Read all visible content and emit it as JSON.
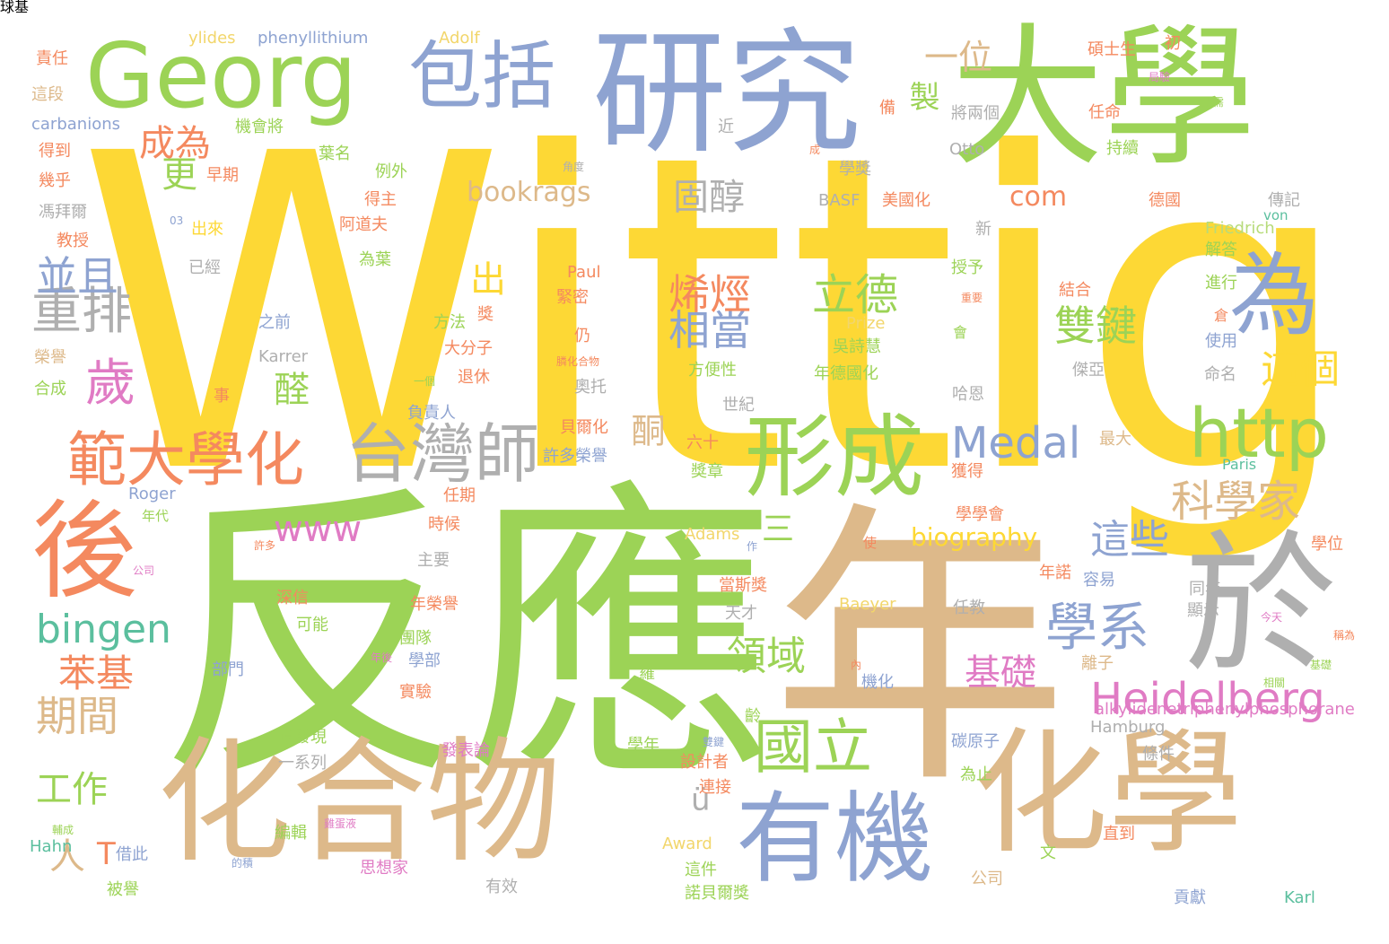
{
  "palette": {
    "yellow": "#FDD835",
    "green": "#9CD356",
    "tan": "#DDB98A",
    "blue": "#8EA3D1",
    "gray": "#AFAFAF",
    "orange": "#F4895F",
    "pink": "#E07BC4",
    "teal": "#5BBF9E",
    "lightgreen": "#B7DB7A",
    "lightyellow": "#F2D66B"
  },
  "words": [
    {
      "text": "Wittig",
      "color": "yellow"
    },
    {
      "text": "反應",
      "color": "green"
    },
    {
      "text": "年",
      "color": "tan"
    },
    {
      "text": "大學",
      "color": "green"
    },
    {
      "text": "研究",
      "color": "blue"
    },
    {
      "text": "化合物",
      "color": "tan"
    },
    {
      "text": "化學",
      "color": "tan"
    },
    {
      "text": "有機",
      "color": "blue"
    },
    {
      "text": "於",
      "color": "gray"
    },
    {
      "text": "Georg",
      "color": "green"
    },
    {
      "text": "包括",
      "color": "blue"
    },
    {
      "text": "為",
      "color": "blue"
    },
    {
      "text": "形成",
      "color": "green"
    },
    {
      "text": "後",
      "color": "orange"
    },
    {
      "text": "http",
      "color": "green"
    },
    {
      "text": "台灣師",
      "color": "gray"
    },
    {
      "text": "範大學化",
      "color": "orange"
    },
    {
      "text": "國立",
      "color": "green"
    },
    {
      "text": "Heidelberg",
      "color": "pink"
    },
    {
      "text": "學系",
      "color": "blue"
    },
    {
      "text": "Medal",
      "color": "blue"
    },
    {
      "text": "科學家",
      "color": "tan"
    },
    {
      "text": "bingen",
      "color": "teal"
    },
    {
      "text": "歲",
      "color": "pink"
    },
    {
      "text": "重排",
      "color": "gray"
    },
    {
      "text": "並且",
      "color": "blue"
    },
    {
      "text": "期間",
      "color": "tan"
    },
    {
      "text": "立德",
      "color": "green"
    },
    {
      "text": "相當",
      "color": "blue"
    },
    {
      "text": "烯烴",
      "color": "orange"
    },
    {
      "text": "雙鍵",
      "color": "green"
    },
    {
      "text": "這個",
      "color": "yellow"
    },
    {
      "text": "這些",
      "color": "blue"
    },
    {
      "text": "領域",
      "color": "green"
    },
    {
      "text": "基礎",
      "color": "pink"
    },
    {
      "text": "苯基",
      "color": "orange"
    },
    {
      "text": "工作",
      "color": "green"
    },
    {
      "text": "成為",
      "color": "orange"
    },
    {
      "text": "更",
      "color": "green"
    },
    {
      "text": "固醇",
      "color": "gray"
    },
    {
      "text": "一位",
      "color": "tan"
    },
    {
      "text": "製",
      "color": "green"
    },
    {
      "text": "酮",
      "color": "tan"
    },
    {
      "text": "醛",
      "color": "green"
    },
    {
      "text": "出",
      "color": "yellow"
    },
    {
      "text": "三",
      "color": "green"
    },
    {
      "text": "www",
      "color": "pink"
    },
    {
      "text": "bookrags",
      "color": "tan"
    },
    {
      "text": "com",
      "color": "orange"
    },
    {
      "text": "biography",
      "color": "yellow"
    },
    {
      "text": "人",
      "color": "tan"
    },
    {
      "text": "T",
      "color": "orange"
    },
    {
      "text": "ü",
      "color": "gray"
    },
    {
      "text": "ylides",
      "color": "lightyellow"
    },
    {
      "text": "phenyllithium",
      "color": "blue"
    },
    {
      "text": "Adolf",
      "color": "lightyellow"
    },
    {
      "text": "責任",
      "color": "orange"
    },
    {
      "text": "這段",
      "color": "tan"
    },
    {
      "text": "carbanions",
      "color": "blue"
    },
    {
      "text": "得到",
      "color": "orange"
    },
    {
      "text": "幾乎",
      "color": "orange"
    },
    {
      "text": "馮拜爾",
      "color": "gray"
    },
    {
      "text": "教授",
      "color": "orange"
    },
    {
      "text": "機會將",
      "color": "green"
    },
    {
      "text": "早期",
      "color": "orange"
    },
    {
      "text": "出來",
      "color": "yellow"
    },
    {
      "text": "已經",
      "color": "gray"
    },
    {
      "text": "葉名",
      "color": "green"
    },
    {
      "text": "例外",
      "color": "green"
    },
    {
      "text": "得主",
      "color": "orange"
    },
    {
      "text": "阿道夫",
      "color": "orange"
    },
    {
      "text": "為葉",
      "color": "green"
    },
    {
      "text": "之前",
      "color": "blue"
    },
    {
      "text": "Karrer",
      "color": "gray"
    },
    {
      "text": "榮譽",
      "color": "tan"
    },
    {
      "text": "合成",
      "color": "green"
    },
    {
      "text": "方法",
      "color": "green"
    },
    {
      "text": "大分子",
      "color": "orange"
    },
    {
      "text": "退休",
      "color": "orange"
    },
    {
      "text": "負責人",
      "color": "blue"
    },
    {
      "text": "貝爾化",
      "color": "orange"
    },
    {
      "text": "許多榮譽",
      "color": "blue"
    },
    {
      "text": "任期",
      "color": "orange"
    },
    {
      "text": "時候",
      "color": "orange"
    },
    {
      "text": "Roger",
      "color": "blue"
    },
    {
      "text": "年代",
      "color": "green"
    },
    {
      "text": "Paul",
      "color": "orange"
    },
    {
      "text": "緊密",
      "color": "orange"
    },
    {
      "text": "碩士生",
      "color": "orange"
    },
    {
      "text": "初",
      "color": "orange"
    },
    {
      "text": "將兩個",
      "color": "gray"
    },
    {
      "text": "近",
      "color": "gray"
    },
    {
      "text": "Otto",
      "color": "gray"
    },
    {
      "text": "任命",
      "color": "orange"
    },
    {
      "text": "持續",
      "color": "green"
    },
    {
      "text": "學獎",
      "color": "gray"
    },
    {
      "text": "BASF",
      "color": "gray"
    },
    {
      "text": "美國化",
      "color": "orange"
    },
    {
      "text": "德國",
      "color": "orange"
    },
    {
      "text": "傳記",
      "color": "gray"
    },
    {
      "text": "von",
      "color": "teal"
    },
    {
      "text": "新",
      "color": "gray"
    },
    {
      "text": "Friedrich",
      "color": "lightgreen"
    },
    {
      "text": "解答",
      "color": "green"
    },
    {
      "text": "授予",
      "color": "green"
    },
    {
      "text": "結合",
      "color": "orange"
    },
    {
      "text": "進行",
      "color": "green"
    },
    {
      "text": "Prize",
      "color": "lightyellow"
    },
    {
      "text": "吳詩慧",
      "color": "green"
    },
    {
      "text": "年德國化",
      "color": "green"
    },
    {
      "text": "方便性",
      "color": "green"
    },
    {
      "text": "會",
      "color": "green"
    },
    {
      "text": "倉",
      "color": "orange"
    },
    {
      "text": "使用",
      "color": "blue"
    },
    {
      "text": "傑亞",
      "color": "gray"
    },
    {
      "text": "命名",
      "color": "gray"
    },
    {
      "text": "哈恩",
      "color": "gray"
    },
    {
      "text": "奧托",
      "color": "gray"
    },
    {
      "text": "世紀",
      "color": "gray"
    },
    {
      "text": "六十",
      "color": "orange"
    },
    {
      "text": "獎章",
      "color": "green"
    },
    {
      "text": "最大",
      "color": "tan"
    },
    {
      "text": "獲得",
      "color": "orange"
    },
    {
      "text": "Paris",
      "color": "teal"
    },
    {
      "text": "學學會",
      "color": "orange"
    },
    {
      "text": "Adams",
      "color": "lightyellow"
    },
    {
      "text": "使",
      "color": "orange"
    },
    {
      "text": "學位",
      "color": "orange"
    },
    {
      "text": "主要",
      "color": "gray"
    },
    {
      "text": "深信",
      "color": "orange"
    },
    {
      "text": "可能",
      "color": "green"
    },
    {
      "text": "當斯獎",
      "color": "orange"
    },
    {
      "text": "年榮譽",
      "color": "orange"
    },
    {
      "text": "Baeyer",
      "color": "lightyellow"
    },
    {
      "text": "天才",
      "color": "gray"
    },
    {
      "text": "任教",
      "color": "gray"
    },
    {
      "text": "年諾",
      "color": "orange"
    },
    {
      "text": "容易",
      "color": "blue"
    },
    {
      "text": "同年",
      "color": "gray"
    },
    {
      "text": "顯示",
      "color": "gray"
    },
    {
      "text": "部門",
      "color": "blue"
    },
    {
      "text": "團隊",
      "color": "green"
    },
    {
      "text": "學部",
      "color": "blue"
    },
    {
      "text": "實驗",
      "color": "orange"
    },
    {
      "text": "羅",
      "color": "green"
    },
    {
      "text": "機化",
      "color": "blue"
    },
    {
      "text": "離子",
      "color": "tan"
    },
    {
      "text": "Hamburg",
      "color": "gray"
    },
    {
      "text": "還發現",
      "color": "green"
    },
    {
      "text": "一系列",
      "color": "gray"
    },
    {
      "text": "發表論",
      "color": "pink"
    },
    {
      "text": "學年",
      "color": "green"
    },
    {
      "text": "設計者",
      "color": "orange"
    },
    {
      "text": "碳原子",
      "color": "blue"
    },
    {
      "text": "條件",
      "color": "gray"
    },
    {
      "text": "連接",
      "color": "orange"
    },
    {
      "text": "為止",
      "color": "green"
    },
    {
      "text": "編輯",
      "color": "green"
    },
    {
      "text": "Hahn",
      "color": "teal"
    },
    {
      "text": "借此",
      "color": "blue"
    },
    {
      "text": "被譽",
      "color": "green"
    },
    {
      "text": "思想家",
      "color": "pink"
    },
    {
      "text": "有效",
      "color": "gray"
    },
    {
      "text": "Award",
      "color": "lightyellow"
    },
    {
      "text": "這件",
      "color": "green"
    },
    {
      "text": "諾貝爾獎",
      "color": "green"
    },
    {
      "text": "公司",
      "color": "tan"
    },
    {
      "text": "文",
      "color": "green"
    },
    {
      "text": "直到",
      "color": "orange"
    },
    {
      "text": "貢獻",
      "color": "blue"
    },
    {
      "text": "Karl",
      "color": "teal"
    },
    {
      "text": "事",
      "color": "orange"
    },
    {
      "text": "仍",
      "color": "orange"
    },
    {
      "text": "一個",
      "color": "green"
    },
    {
      "text": "獎",
      "color": "orange"
    },
    {
      "text": "備",
      "color": "orange"
    },
    {
      "text": "齡",
      "color": "green"
    },
    {
      "text": "局驗",
      "color": "pink"
    },
    {
      "text": "所需",
      "color": "green"
    },
    {
      "text": "角度",
      "color": "gray"
    },
    {
      "text": "成",
      "color": "orange"
    },
    {
      "text": "03",
      "color": "blue"
    },
    {
      "text": "膦化合物",
      "color": "orange"
    },
    {
      "text": "重要",
      "color": "orange"
    },
    {
      "text": "許多",
      "color": "orange"
    },
    {
      "text": "作",
      "color": "blue"
    },
    {
      "text": "今天",
      "color": "pink"
    },
    {
      "text": "基礎",
      "color": "green"
    },
    {
      "text": "稱為",
      "color": "orange"
    },
    {
      "text": "年後",
      "color": "pink"
    },
    {
      "text": "內",
      "color": "orange"
    },
    {
      "text": "雙鍵",
      "color": "blue"
    },
    {
      "text": "相關",
      "color": "green"
    },
    {
      "text": "輔成",
      "color": "green"
    },
    {
      "text": "的積",
      "color": "blue"
    },
    {
      "text": "公司",
      "color": "pink"
    },
    {
      "text": "雞蛋液",
      "color": "pink"
    },
    {
      "text": "alkylidenetriphenylphosphorane",
      "color": "pink"
    },
    {
      "text": "球基",
      "color": "gray"
    }
  ]
}
